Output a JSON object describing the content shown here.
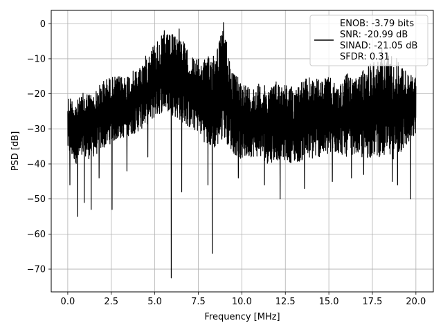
{
  "chart_data": {
    "type": "line",
    "xlabel": "Frequency [MHz]",
    "ylabel": "PSD [dB]",
    "xlim": [
      -0.95,
      21.0
    ],
    "ylim": [
      -76.5,
      3.8
    ],
    "xticks": [
      0.0,
      2.5,
      5.0,
      7.5,
      10.0,
      12.5,
      15.0,
      17.5,
      20.0
    ],
    "xtick_labels": [
      "0.0",
      "2.5",
      "5.0",
      "7.5",
      "10.0",
      "12.5",
      "15.0",
      "17.5",
      "20.0"
    ],
    "yticks": [
      0,
      -10,
      -20,
      -30,
      -40,
      -50,
      -60,
      -70
    ],
    "ytick_labels": [
      "0",
      "−10",
      "−20",
      "−30",
      "−40",
      "−50",
      "−60",
      "−70"
    ],
    "grid": true,
    "legend_position": "top-right",
    "series": [
      {
        "name": "ENOB: -3.79 bits",
        "legend_lines": [
          "ENOB: -3.79 bits",
          "SNR: -20.99 dB",
          "SINAD: -21.05 dB",
          "SFDR: 0.31"
        ],
        "color": "#000000",
        "envelope": {
          "x": [
            0.0,
            0.5,
            1.0,
            1.5,
            2.0,
            2.5,
            3.0,
            3.5,
            4.0,
            4.5,
            5.0,
            5.5,
            6.0,
            6.5,
            7.0,
            7.5,
            8.0,
            8.5,
            9.0,
            9.5,
            10.0,
            10.5,
            11.0,
            11.5,
            12.0,
            12.5,
            13.0,
            13.5,
            14.0,
            14.5,
            15.0,
            15.5,
            16.0,
            16.5,
            17.0,
            17.5,
            18.0,
            18.5,
            19.0,
            19.5,
            20.0
          ],
          "upper": [
            -20,
            -22,
            -19,
            -20,
            -16,
            -15,
            -15,
            -14,
            -13,
            -9,
            -5,
            -3,
            -3,
            -3,
            -9,
            -10,
            -10,
            -6,
            -1,
            -14,
            -16,
            -18,
            -17,
            -18,
            -16,
            -17,
            -18,
            -16,
            -15,
            -16,
            -15,
            -18,
            -14,
            -16,
            -13,
            -10,
            -10,
            -8,
            -10,
            -14,
            -15
          ],
          "lower": [
            -37,
            -40,
            -39,
            -38,
            -36,
            -34,
            -33,
            -32,
            -31,
            -29,
            -27,
            -25,
            -26,
            -28,
            -30,
            -31,
            -35,
            -36,
            -33,
            -37,
            -39,
            -38,
            -38,
            -40,
            -39,
            -39,
            -40,
            -39,
            -39,
            -38,
            -38,
            -37,
            -38,
            -37,
            -39,
            -38,
            -38,
            -39,
            -38,
            -35,
            -32
          ]
        },
        "dips": [
          {
            "x": 0.12,
            "y": -46
          },
          {
            "x": 0.55,
            "y": -55
          },
          {
            "x": 0.95,
            "y": -51
          },
          {
            "x": 1.35,
            "y": -53
          },
          {
            "x": 1.8,
            "y": -44
          },
          {
            "x": 2.55,
            "y": -53
          },
          {
            "x": 3.4,
            "y": -42
          },
          {
            "x": 4.6,
            "y": -38
          },
          {
            "x": 5.95,
            "y": -72.5
          },
          {
            "x": 6.55,
            "y": -48
          },
          {
            "x": 8.05,
            "y": -46
          },
          {
            "x": 8.3,
            "y": -65.5
          },
          {
            "x": 9.8,
            "y": -44
          },
          {
            "x": 11.3,
            "y": -46
          },
          {
            "x": 12.2,
            "y": -50
          },
          {
            "x": 13.6,
            "y": -47
          },
          {
            "x": 15.2,
            "y": -45
          },
          {
            "x": 16.3,
            "y": -44
          },
          {
            "x": 17.0,
            "y": -43
          },
          {
            "x": 18.65,
            "y": -45
          },
          {
            "x": 18.95,
            "y": -46
          },
          {
            "x": 19.7,
            "y": -50
          }
        ],
        "peaks": [
          {
            "x": 5.55,
            "y": -2
          },
          {
            "x": 6.4,
            "y": -1.5
          },
          {
            "x": 8.95,
            "y": 0.3
          },
          {
            "x": 18.05,
            "y": -7
          }
        ]
      }
    ]
  }
}
